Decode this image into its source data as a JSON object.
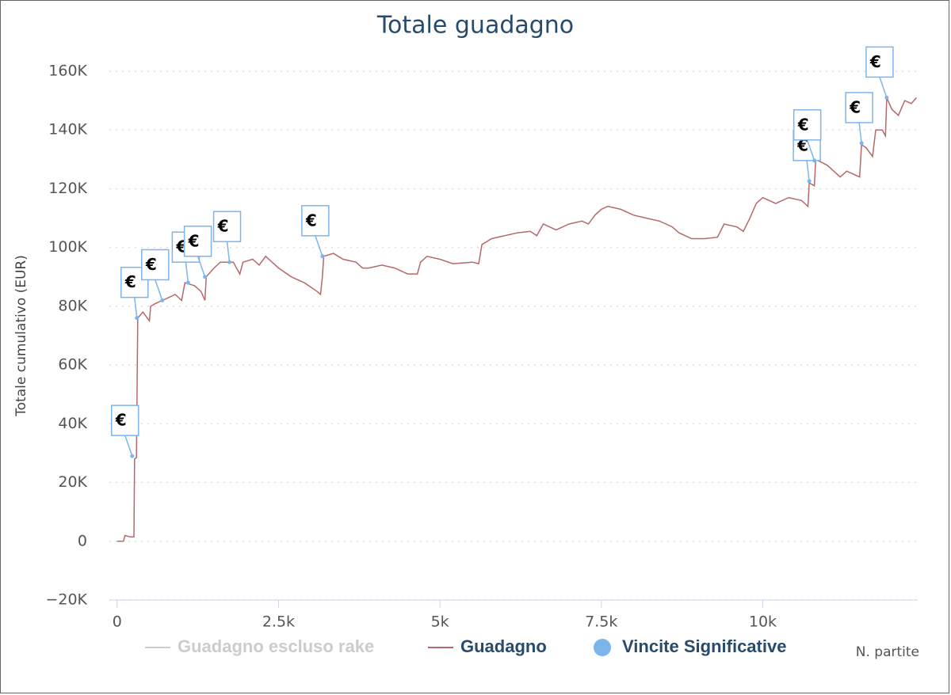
{
  "chart_data": {
    "type": "line",
    "title": "Totale guadagno",
    "y_label": "Totale cumulativo (EUR)",
    "x_label": "N. partite",
    "flag_text": "€",
    "xlim": [
      -120,
      12400
    ],
    "xticks": [
      0,
      {
        "value": 2500,
        "label": "2.5k"
      },
      {
        "value": 5000,
        "label": "5k"
      },
      {
        "value": 7500,
        "label": "7.5k"
      },
      {
        "value": 10000,
        "label": "10k"
      }
    ],
    "ylim": [
      -20000,
      160000
    ],
    "yticks": [
      {
        "value": -20000,
        "label": "−20K"
      },
      0,
      {
        "value": 20000,
        "label": "20K"
      },
      {
        "value": 40000,
        "label": "40K"
      },
      {
        "value": 60000,
        "label": "60K"
      },
      {
        "value": 80000,
        "label": "80K"
      },
      {
        "value": 100000,
        "label": "100K"
      },
      {
        "value": 120000,
        "label": "120K"
      },
      {
        "value": 140000,
        "label": "140K"
      },
      {
        "value": 160000,
        "label": "160K"
      }
    ],
    "grid": true,
    "legend": "bottom",
    "series": [
      {
        "name": "Guadagno escluso rake",
        "color": "#cccccc",
        "visible": false
      },
      {
        "name": "Guadagno",
        "color": "#b5696a",
        "x": [
          0,
          100,
          120,
          200,
          260,
          270,
          300,
          320,
          400,
          500,
          520,
          600,
          700,
          800,
          900,
          1000,
          1050,
          1200,
          1300,
          1360,
          1380,
          1500,
          1600,
          1800,
          1900,
          1950,
          2100,
          2200,
          2300,
          2400,
          2500,
          2700,
          2900,
          3100,
          3150,
          3180,
          3200,
          3350,
          3500,
          3700,
          3800,
          3900,
          4100,
          4300,
          4500,
          4650,
          4700,
          4800,
          5000,
          5200,
          5500,
          5600,
          5650,
          5800,
          6000,
          6200,
          6400,
          6500,
          6600,
          6800,
          7000,
          7200,
          7300,
          7400,
          7500,
          7600,
          7800,
          8000,
          8200,
          8400,
          8500,
          8600,
          8700,
          8900,
          9100,
          9300,
          9400,
          9600,
          9700,
          9800,
          9900,
          10000,
          10200,
          10400,
          10600,
          10700,
          10720,
          10800,
          10820,
          11000,
          11200,
          11300,
          11500,
          11530,
          11600,
          11700,
          11750,
          11850,
          11900,
          11920,
          12000,
          12100,
          12200,
          12300,
          12380
        ],
        "values": [
          0,
          0,
          2000,
          1500,
          1500,
          28000,
          28500,
          76000,
          78000,
          75000,
          80000,
          81000,
          82000,
          83000,
          84000,
          82000,
          88000,
          87000,
          85000,
          82000,
          90000,
          93000,
          95000,
          95000,
          91000,
          95000,
          96000,
          94000,
          97000,
          95000,
          93000,
          90000,
          88000,
          85000,
          84000,
          90000,
          97000,
          98000,
          96000,
          95000,
          93000,
          93000,
          94000,
          93000,
          91000,
          91000,
          95000,
          97000,
          96000,
          94500,
          95000,
          94500,
          101000,
          103000,
          104000,
          105000,
          105500,
          104000,
          108000,
          106000,
          108000,
          109000,
          108000,
          111000,
          113000,
          114000,
          113000,
          111000,
          110000,
          109000,
          108000,
          107000,
          105000,
          103000,
          103000,
          103500,
          108000,
          107000,
          105500,
          110000,
          115000,
          117000,
          115000,
          117000,
          116000,
          114000,
          122000,
          121000,
          130000,
          128000,
          124000,
          126000,
          124000,
          135000,
          134000,
          131000,
          140000,
          140000,
          138000,
          151000,
          147000,
          145000,
          150000,
          149000,
          151000
        ]
      },
      {
        "name": "Vincite Significative",
        "type": "scatter",
        "color": "#7cb5ec",
        "x": [
          233,
          307,
          700,
          1100,
          1360,
          1740,
          3180,
          10720,
          10800,
          11530,
          11920
        ],
        "values": [
          29000,
          76000,
          82000,
          88000,
          90000,
          95000,
          97000,
          122600,
          129600,
          135500,
          151000
        ]
      }
    ]
  }
}
